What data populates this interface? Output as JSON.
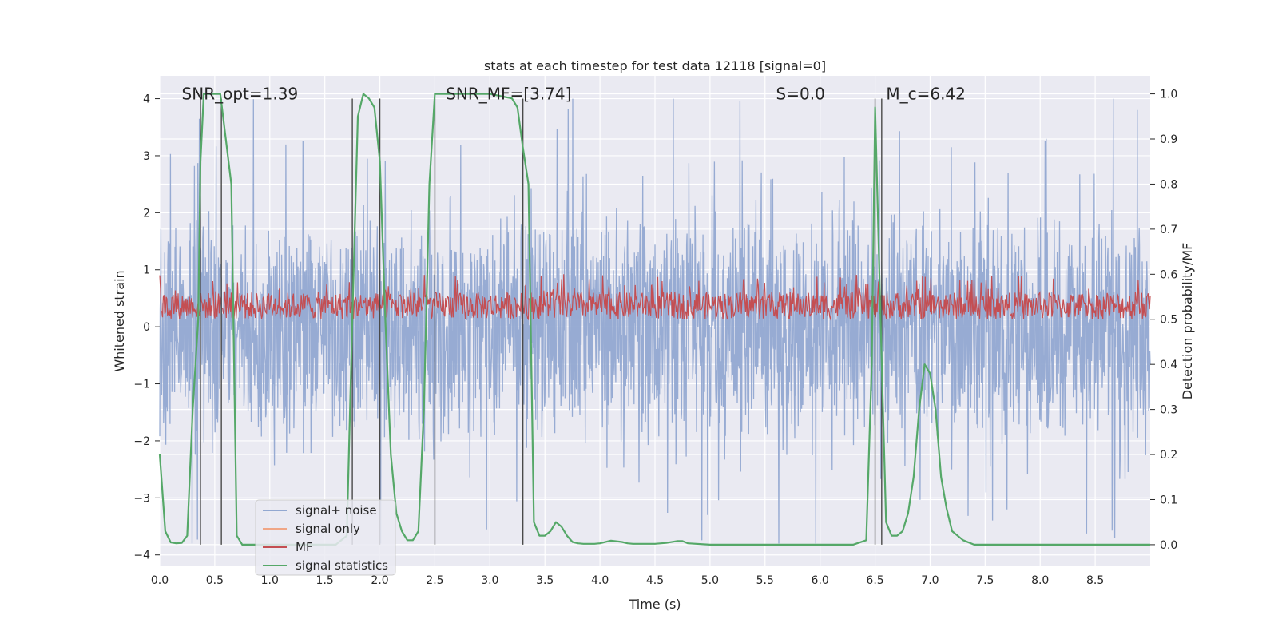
{
  "chart_data": {
    "type": "line",
    "title": "stats at each timestep for test data 12118 [signal=0]",
    "xlabel": "Time (s)",
    "ylabel": "Whitened strain",
    "y2label": "Detection probability/MF",
    "xlim": [
      0.0,
      9.0
    ],
    "ylim": [
      -4.2,
      4.4
    ],
    "y2lim": [
      -0.048,
      1.04
    ],
    "xticks": [
      "0.0",
      "0.5",
      "1.0",
      "1.5",
      "2.0",
      "2.5",
      "3.0",
      "3.5",
      "4.0",
      "4.5",
      "5.0",
      "5.5",
      "6.0",
      "6.5",
      "7.0",
      "7.5",
      "8.0",
      "8.5"
    ],
    "yticks": [
      "−4",
      "−3",
      "−2",
      "−1",
      "0",
      "1",
      "2",
      "3",
      "4"
    ],
    "y2ticks": [
      "0.0",
      "0.1",
      "0.2",
      "0.3",
      "0.4",
      "0.5",
      "0.6",
      "0.7",
      "0.8",
      "0.9",
      "1.0"
    ],
    "grid": true,
    "legend_placement": "lower-left",
    "annotations": [
      {
        "x": 0.2,
        "y": 4.0,
        "text": "SNR_opt=1.39"
      },
      {
        "x": 2.6,
        "y": 4.0,
        "text": "SNR_MF=[3.74]"
      },
      {
        "x": 5.6,
        "y": 4.0,
        "text": "S=0.0"
      },
      {
        "x": 6.6,
        "y": 4.0,
        "text": "M_c=6.42"
      }
    ],
    "vertical_markers": [
      0.37,
      0.56,
      1.75,
      2.0,
      2.5,
      3.3,
      6.5,
      6.56
    ],
    "series": [
      {
        "name": "signal+ noise",
        "axis": "left",
        "color": "#92a8d1",
        "description_range": [
          -3.8,
          4.0
        ]
      },
      {
        "name": "signal only",
        "axis": "left",
        "color": "#f0a686"
      },
      {
        "name": "MF",
        "axis": "right",
        "color": "#c44e52",
        "range": [
          0.5,
          0.6
        ]
      },
      {
        "name": "signal statistics",
        "axis": "right",
        "color": "#55a868",
        "x": [
          0.0,
          0.05,
          0.1,
          0.15,
          0.2,
          0.25,
          0.3,
          0.35,
          0.37,
          0.4,
          0.45,
          0.5,
          0.55,
          0.6,
          0.65,
          0.7,
          0.75,
          0.8,
          1.0,
          1.2,
          1.4,
          1.6,
          1.7,
          1.75,
          1.8,
          1.85,
          1.9,
          1.95,
          2.0,
          2.05,
          2.1,
          2.15,
          2.2,
          2.25,
          2.3,
          2.35,
          2.4,
          2.45,
          2.5,
          2.55,
          2.6,
          2.8,
          3.0,
          3.2,
          3.25,
          3.3,
          3.35,
          3.4,
          3.45,
          3.5,
          3.55,
          3.6,
          3.65,
          3.7,
          3.75,
          3.8,
          3.85,
          3.9,
          3.95,
          4.0,
          4.1,
          4.2,
          4.25,
          4.3,
          4.4,
          4.5,
          4.6,
          4.7,
          4.75,
          4.8,
          5.0,
          5.5,
          6.0,
          6.3,
          6.42,
          6.47,
          6.5,
          6.55,
          6.6,
          6.65,
          6.7,
          6.75,
          6.8,
          6.85,
          6.9,
          6.95,
          7.0,
          7.05,
          7.1,
          7.15,
          7.2,
          7.3,
          7.4,
          7.45,
          7.5,
          7.6,
          8.0,
          8.5,
          9.0
        ],
        "values": [
          0.2,
          0.03,
          0.005,
          0.003,
          0.004,
          0.02,
          0.3,
          0.5,
          0.85,
          1.0,
          1.0,
          1.0,
          1.0,
          0.9,
          0.8,
          0.02,
          0.0,
          0.0,
          0.0,
          0.0,
          0.0,
          0.0,
          0.02,
          0.5,
          0.95,
          1.0,
          0.99,
          0.97,
          0.85,
          0.5,
          0.2,
          0.07,
          0.03,
          0.01,
          0.01,
          0.03,
          0.3,
          0.8,
          1.0,
          1.0,
          1.0,
          1.0,
          1.0,
          0.99,
          0.97,
          0.88,
          0.8,
          0.05,
          0.02,
          0.02,
          0.03,
          0.05,
          0.04,
          0.02,
          0.006,
          0.003,
          0.002,
          0.002,
          0.002,
          0.003,
          0.009,
          0.006,
          0.003,
          0.002,
          0.002,
          0.002,
          0.004,
          0.008,
          0.008,
          0.003,
          0.0,
          0.0,
          0.0,
          0.0,
          0.01,
          0.4,
          0.97,
          0.5,
          0.05,
          0.02,
          0.02,
          0.03,
          0.07,
          0.15,
          0.3,
          0.4,
          0.38,
          0.3,
          0.15,
          0.08,
          0.03,
          0.01,
          0.0,
          0.0,
          0.0,
          0.0,
          0.0,
          0.0,
          0.0
        ]
      }
    ]
  }
}
